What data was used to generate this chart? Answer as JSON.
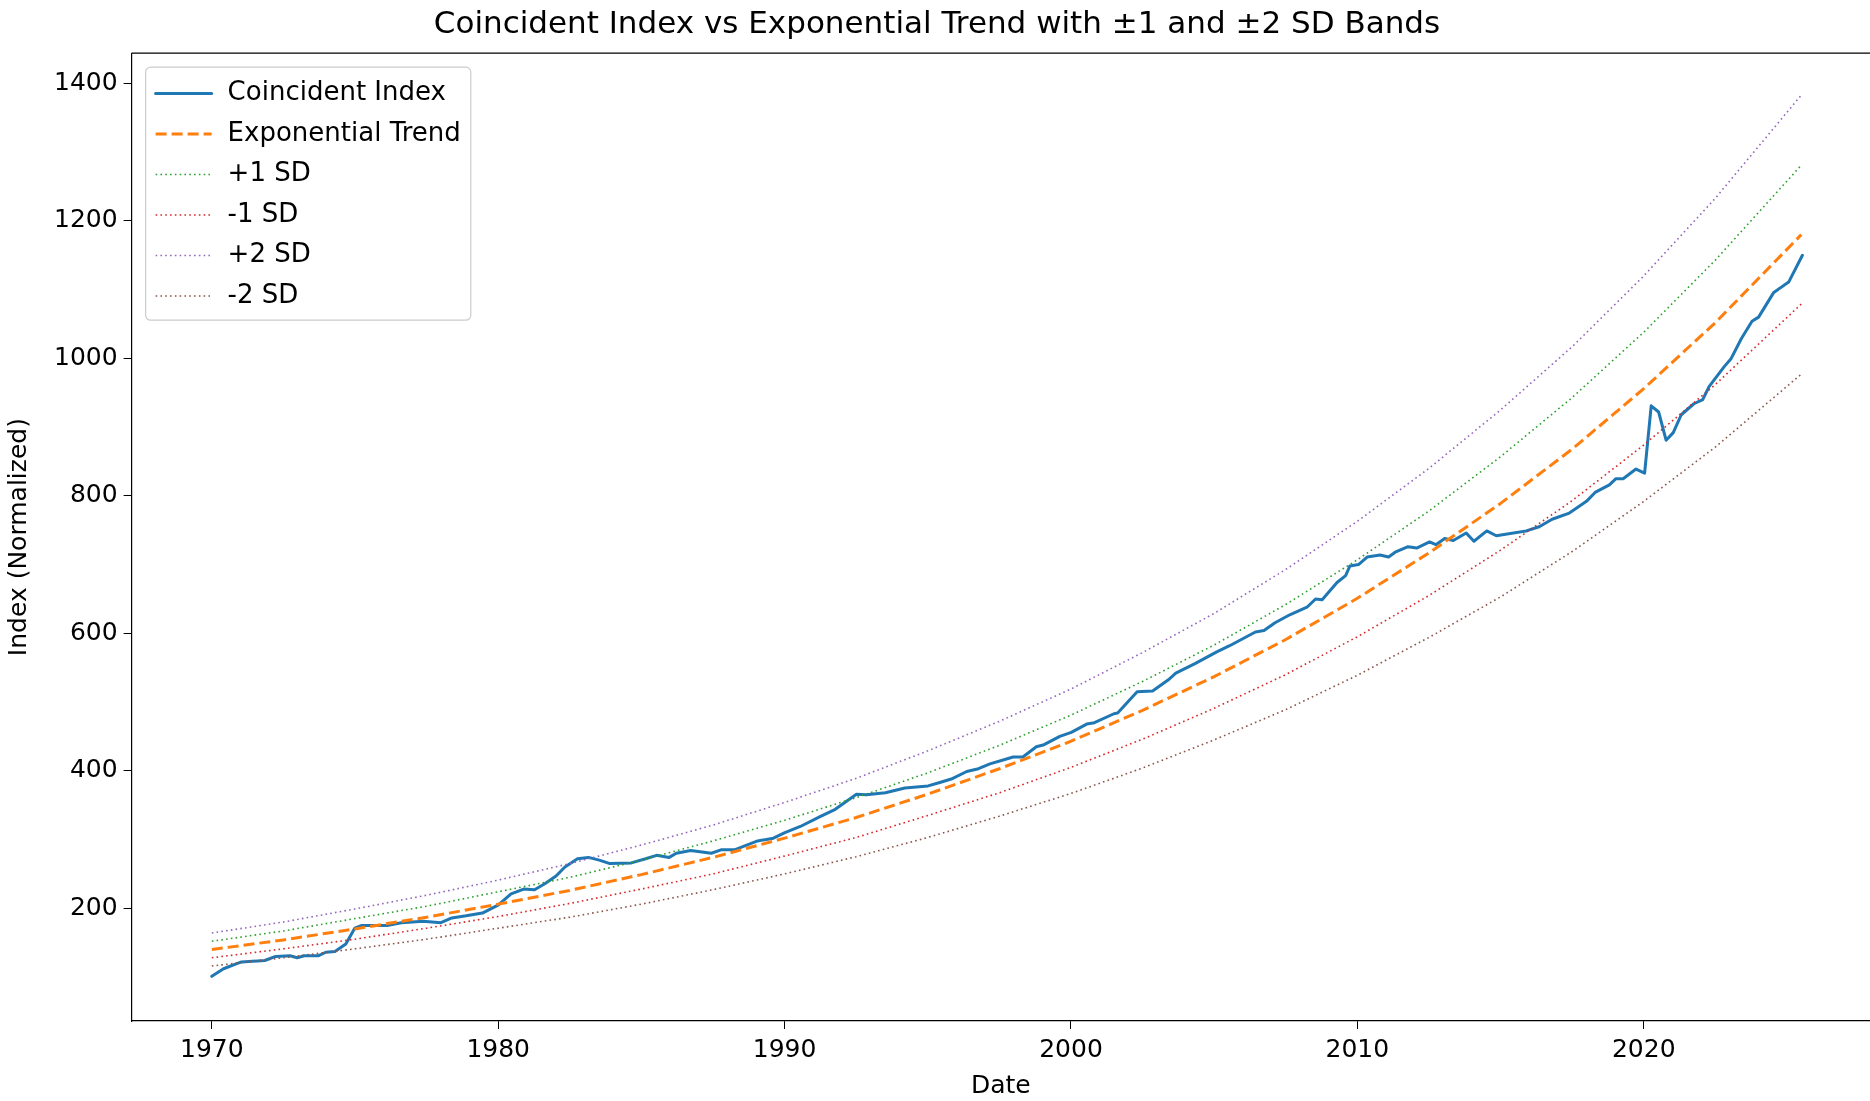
{
  "chart_data": {
    "type": "line",
    "title": "Coincident Index vs Exponential Trend with ±1 and ±2 SD Bands",
    "xlabel": "Date",
    "ylabel": "Index (Normalized)",
    "xlim": [
      1967.2,
      2027.9
    ],
    "xticks": [
      1970,
      1980,
      1990,
      2000,
      2010,
      2020
    ],
    "ylim": [
      36,
      1444
    ],
    "yticks": [
      200,
      400,
      600,
      800,
      1000,
      1200,
      1400
    ],
    "legend": "top left",
    "series": [
      {
        "name": "Coincident Index",
        "color": "#1f77b4",
        "line_style": "solid",
        "x": [
          1970,
          1970.41,
          1970.85,
          1971.04,
          1971.85,
          1972.23,
          1972.73,
          1972.98,
          1973.23,
          1973.73,
          1973.98,
          1974.3,
          1974.68,
          1974.99,
          1975.24,
          1975.74,
          1976.12,
          1976.62,
          1977.38,
          1978,
          1978.38,
          1978.88,
          1979.45,
          1980.01,
          1980.45,
          1980.89,
          1981.27,
          1981.64,
          1982.02,
          1982.33,
          1982.77,
          1983.15,
          1983.53,
          1983.9,
          1984.65,
          1985.15,
          1985.53,
          1985.97,
          1986.22,
          1986.72,
          1987.44,
          1987.78,
          1988.25,
          1989.06,
          1989.61,
          1990.01,
          1990.55,
          1991.22,
          1991.77,
          1992.51,
          1992.85,
          1993.52,
          1994.2,
          1995.01,
          1995.42,
          1995.82,
          1996.36,
          1996.77,
          1997.17,
          1997.98,
          1998.32,
          1998.79,
          1999.06,
          1999.61,
          2000.01,
          2000.55,
          2000.82,
          2001.5,
          2001.63,
          2002.31,
          2002.85,
          2003.39,
          2003.66,
          2004.33,
          2005.09,
          2005.54,
          2006.44,
          2006.74,
          2007.11,
          2007.64,
          2008.24,
          2008.54,
          2008.77,
          2009.29,
          2009.59,
          2009.74,
          2010.04,
          2010.34,
          2010.79,
          2011.09,
          2011.32,
          2011.77,
          2012.07,
          2012.52,
          2012.74,
          2013.05,
          2013.35,
          2013.8,
          2014.07,
          2014.52,
          2014.85,
          2015.9,
          2016.35,
          2016.8,
          2017.4,
          2018,
          2018.3,
          2018.8,
          2019.03,
          2019.28,
          2019.73,
          2020.03,
          2020.26,
          2020.52,
          2020.78,
          2021.03,
          2021.31,
          2021.75,
          2022.06,
          2022.28,
          2022.81,
          2023.04,
          2023.41,
          2023.78,
          2024.01,
          2024.54,
          2025.06,
          2025.54
        ],
        "values": [
          101,
          112,
          119,
          122,
          124,
          130,
          131,
          128,
          131,
          131,
          136,
          137,
          148,
          171,
          175,
          175,
          175,
          179,
          181,
          179,
          186,
          189,
          193,
          205,
          221,
          228,
          227,
          236,
          247,
          260,
          272,
          274,
          270,
          265,
          266,
          272,
          277,
          274,
          280,
          284,
          280,
          285,
          285,
          298,
          302,
          310,
          319,
          333,
          344,
          366,
          365,
          368,
          375,
          378,
          383,
          388,
          399,
          403,
          410,
          420,
          420,
          435,
          438,
          450,
          456,
          468,
          470,
          483,
          484,
          515,
          516,
          532,
          542,
          556,
          573,
          582,
          602,
          604,
          615,
          627,
          638,
          650,
          649,
          674,
          684,
          698,
          700,
          711,
          714,
          711,
          718,
          726,
          724,
          733,
          729,
          738,
          735,
          746,
          734,
          749,
          742,
          749,
          755,
          766,
          775,
          792,
          805,
          816,
          825,
          825,
          839,
          833,
          931,
          922,
          881,
          892,
          918,
          934,
          940,
          959,
          988,
          999,
          1029,
          1054,
          1060,
          1096,
          1111,
          1150
        ]
      },
      {
        "name": "Exponential Trend",
        "color": "#ff7f0e",
        "line_style": "dashed",
        "x": [
          1970,
          1972.5,
          1975,
          1977.5,
          1980,
          1982.5,
          1985,
          1987.5,
          1990,
          1992.5,
          1995,
          1997.5,
          2000,
          2002.5,
          2005,
          2007.5,
          2010,
          2012.5,
          2015,
          2017.5,
          2020,
          2022.5,
          2025.5
        ],
        "values": [
          140,
          154,
          170,
          187,
          206,
          226,
          249,
          274,
          302,
          332,
          366,
          403,
          443,
          488,
          537,
          591,
          651,
          717,
          789,
          868,
          956,
          1052,
          1180
        ]
      },
      {
        "name": "+1 SD",
        "color": "#2ca02c",
        "line_style": "dotted",
        "x": [
          1970,
          1972.5,
          1975,
          1977.5,
          1980,
          1982.5,
          1985,
          1987.5,
          1990,
          1992.5,
          1995,
          1997.5,
          2000,
          2002.5,
          2005,
          2007.5,
          2010,
          2012.5,
          2015,
          2017.5,
          2020,
          2022.5,
          2025.5
        ],
        "values": [
          152,
          167,
          185,
          203,
          224,
          245,
          270,
          298,
          328,
          361,
          397,
          437,
          481,
          530,
          583,
          642,
          707,
          778,
          857,
          943,
          1038,
          1143,
          1281
        ]
      },
      {
        "name": "-1 SD",
        "color": "#d62728",
        "line_style": "dotted",
        "x": [
          1970,
          1972.5,
          1975,
          1977.5,
          1980,
          1982.5,
          1985,
          1987.5,
          1990,
          1992.5,
          1995,
          1997.5,
          2000,
          2002.5,
          2005,
          2007.5,
          2010,
          2012.5,
          2015,
          2017.5,
          2020,
          2022.5,
          2025.5
        ],
        "values": [
          128,
          141,
          155,
          171,
          188,
          207,
          228,
          250,
          276,
          303,
          335,
          368,
          405,
          446,
          491,
          540,
          595,
          655,
          721,
          793,
          874,
          962,
          1079
        ]
      },
      {
        "name": "+2 SD",
        "color": "#9467bd",
        "line_style": "dotted",
        "x": [
          1970,
          1972.5,
          1975,
          1977.5,
          1980,
          1982.5,
          1985,
          1987.5,
          1990,
          1992.5,
          1995,
          1997.5,
          2000,
          2002.5,
          2005,
          2007.5,
          2010,
          2012.5,
          2015,
          2017.5,
          2020,
          2022.5,
          2025.5
        ],
        "values": [
          164,
          180,
          199,
          219,
          241,
          265,
          292,
          321,
          354,
          389,
          429,
          472,
          519,
          572,
          629,
          693,
          763,
          840,
          925,
          1017,
          1120,
          1233,
          1383
        ]
      },
      {
        "name": "-2 SD",
        "color": "#8c564b",
        "line_style": "dotted",
        "x": [
          1970,
          1972.5,
          1975,
          1977.5,
          1980,
          1982.5,
          1985,
          1987.5,
          1990,
          1992.5,
          1995,
          1997.5,
          2000,
          2002.5,
          2005,
          2007.5,
          2010,
          2012.5,
          2015,
          2017.5,
          2020,
          2022.5,
          2025.5
        ],
        "values": [
          116,
          128,
          141,
          155,
          171,
          187,
          206,
          227,
          250,
          275,
          303,
          334,
          367,
          404,
          445,
          489,
          539,
          594,
          653,
          719,
          792,
          871,
          977
        ]
      }
    ]
  }
}
